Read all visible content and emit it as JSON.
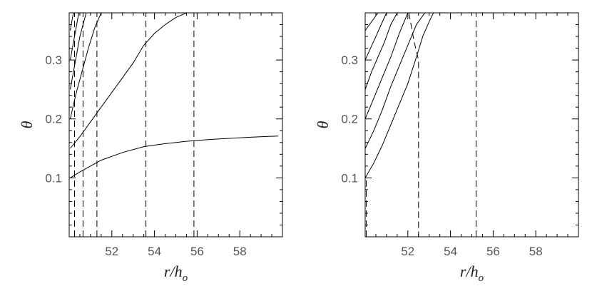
{
  "chart_data": [
    {
      "type": "line",
      "panel": "left",
      "xlabel": "r/h_o",
      "ylabel": "θ",
      "xlim": [
        50,
        60
      ],
      "ylim": [
        0.0,
        0.38
      ],
      "x_ticks": [
        52,
        54,
        56,
        58
      ],
      "y_ticks": [
        0.1,
        0.2,
        0.3
      ],
      "x_ticklabels": [
        "52",
        "54",
        "56",
        "58"
      ],
      "y_ticklabels": [
        "0.1",
        "0.2",
        "0.3"
      ],
      "grid": false,
      "series": [
        {
          "style": "solid",
          "x": [
            50.05,
            50.5,
            51.0,
            51.5,
            52.5,
            53.5,
            54.5,
            55.5,
            56.5,
            57.5,
            58.5,
            59.8
          ],
          "y": [
            0.1,
            0.11,
            0.12,
            0.13,
            0.143,
            0.153,
            0.158,
            0.162,
            0.165,
            0.167,
            0.169,
            0.171
          ]
        },
        {
          "style": "solid",
          "x": [
            50.05,
            50.5,
            51.0,
            51.5,
            52.0,
            52.5,
            53.0,
            53.5,
            54.0,
            54.5,
            55.0,
            55.5
          ],
          "y": [
            0.15,
            0.17,
            0.195,
            0.22,
            0.245,
            0.27,
            0.295,
            0.325,
            0.345,
            0.36,
            0.372,
            0.38
          ]
        },
        {
          "style": "solid",
          "x": [
            50.05,
            50.3,
            50.6,
            50.9,
            51.2,
            51.5
          ],
          "y": [
            0.2,
            0.24,
            0.28,
            0.32,
            0.355,
            0.38
          ]
        },
        {
          "style": "solid",
          "x": [
            50.05,
            50.2,
            50.35,
            50.5,
            50.65,
            50.8
          ],
          "y": [
            0.25,
            0.28,
            0.31,
            0.34,
            0.36,
            0.38
          ]
        },
        {
          "style": "solid",
          "x": [
            50.05,
            50.15,
            50.25,
            50.35,
            50.45
          ],
          "y": [
            0.3,
            0.32,
            0.34,
            0.36,
            0.38
          ]
        },
        {
          "style": "solid",
          "x": [
            50.05,
            50.12,
            50.2
          ],
          "y": [
            0.35,
            0.365,
            0.38
          ]
        },
        {
          "style": "dashed",
          "x": [
            50.25,
            50.25
          ],
          "y": [
            0.0,
            0.38
          ]
        },
        {
          "style": "dashed",
          "x": [
            50.65,
            50.65
          ],
          "y": [
            0.0,
            0.38
          ]
        },
        {
          "style": "dashed",
          "x": [
            51.3,
            51.3
          ],
          "y": [
            0.0,
            0.38
          ]
        },
        {
          "style": "dashed",
          "x": [
            53.6,
            53.6
          ],
          "y": [
            0.0,
            0.38
          ]
        },
        {
          "style": "dashed",
          "x": [
            55.85,
            55.85
          ],
          "y": [
            0.0,
            0.38
          ]
        }
      ]
    },
    {
      "type": "line",
      "panel": "right",
      "xlabel": "r/h_o",
      "ylabel": "θ",
      "xlim": [
        50,
        60
      ],
      "ylim": [
        0.0,
        0.38
      ],
      "x_ticks": [
        52,
        54,
        56,
        58
      ],
      "y_ticks": [
        0.1,
        0.2,
        0.3
      ],
      "x_ticklabels": [
        "52",
        "54",
        "56",
        "58"
      ],
      "y_ticklabels": [
        "0.1",
        "0.2",
        "0.3"
      ],
      "grid": false,
      "series": [
        {
          "style": "solid",
          "x": [
            50.0,
            50.4,
            50.8,
            51.2,
            51.6,
            52.0,
            52.4,
            52.7,
            53.0,
            53.2
          ],
          "y": [
            0.1,
            0.125,
            0.155,
            0.19,
            0.225,
            0.26,
            0.305,
            0.34,
            0.365,
            0.38
          ]
        },
        {
          "style": "solid",
          "x": [
            50.0,
            50.4,
            50.8,
            51.2,
            51.6,
            52.0,
            52.4,
            52.8
          ],
          "y": [
            0.15,
            0.18,
            0.215,
            0.255,
            0.29,
            0.325,
            0.36,
            0.38
          ]
        },
        {
          "style": "solid",
          "x": [
            50.0,
            50.4,
            50.8,
            51.2,
            51.6,
            52.0
          ],
          "y": [
            0.2,
            0.235,
            0.27,
            0.305,
            0.345,
            0.38
          ]
        },
        {
          "style": "solid",
          "x": [
            50.0,
            50.3,
            50.6,
            50.9,
            51.2,
            51.5
          ],
          "y": [
            0.25,
            0.28,
            0.305,
            0.33,
            0.36,
            0.38
          ]
        },
        {
          "style": "solid",
          "x": [
            50.0,
            50.25,
            50.5,
            50.75,
            51.0
          ],
          "y": [
            0.3,
            0.32,
            0.34,
            0.36,
            0.38
          ]
        },
        {
          "style": "solid",
          "x": [
            50.0,
            50.2,
            50.4,
            50.6
          ],
          "y": [
            0.35,
            0.36,
            0.37,
            0.38
          ]
        },
        {
          "style": "dashed",
          "x": [
            50.05,
            50.05
          ],
          "y": [
            0.0,
            0.1
          ]
        },
        {
          "style": "dashed",
          "x": [
            52.05,
            52.3,
            52.5,
            52.5
          ],
          "y": [
            0.38,
            0.33,
            0.3,
            0.0
          ]
        },
        {
          "style": "dashed",
          "x": [
            55.2,
            55.2
          ],
          "y": [
            0.0,
            0.38
          ]
        }
      ]
    }
  ]
}
